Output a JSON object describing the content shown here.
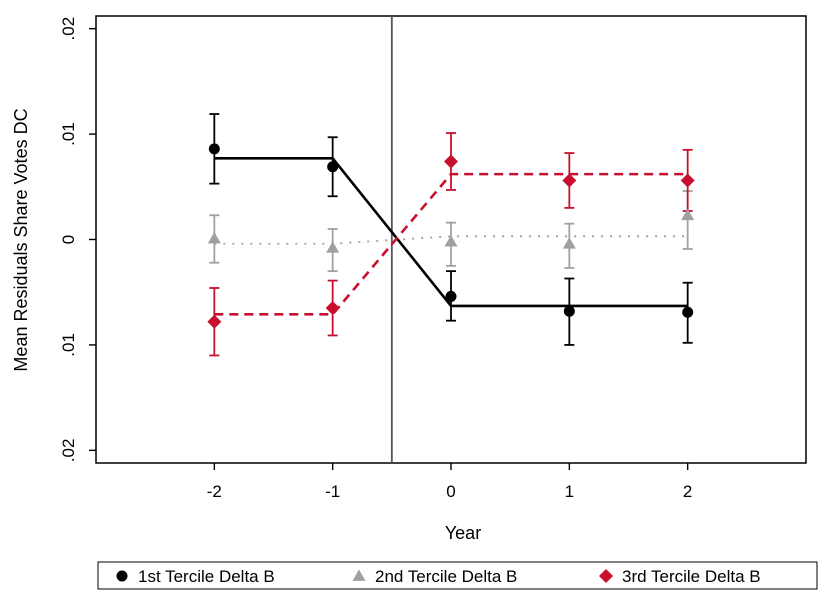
{
  "chart_data": {
    "type": "line",
    "title": "",
    "xlabel": "Year",
    "ylabel": "Mean Residuals Share Votes DC",
    "x_ticks": [
      -2,
      -1,
      0,
      1,
      2
    ],
    "x_tick_labels": [
      "-2",
      "-1",
      "0",
      "1",
      "2"
    ],
    "y_ticks": [
      -0.02,
      -0.01,
      0,
      0.01,
      0.02
    ],
    "y_tick_labels": [
      ".02",
      ".01",
      "0",
      ".01",
      ".02"
    ],
    "y_tick_labels_full": [
      "-.02",
      "-.01",
      "0",
      ".01",
      ".02"
    ],
    "xlim": [
      -3,
      3
    ],
    "ylim": [
      -0.0212,
      0.0212
    ],
    "vertical_reference_line": -0.5,
    "grid": false,
    "legend_position": "bottom",
    "series": [
      {
        "name": "1st Tercile Delta B",
        "color": "#000000",
        "marker": "circle",
        "fit_line_style": "solid",
        "x": [
          -2,
          -1,
          0,
          1,
          2
        ],
        "y": [
          0.0086,
          0.0069,
          -0.0054,
          -0.0068,
          -0.0069
        ],
        "ci_low": [
          0.0053,
          0.0041,
          -0.0077,
          -0.01,
          -0.0098
        ],
        "ci_high": [
          0.0119,
          0.0097,
          -0.003,
          -0.0037,
          -0.0041
        ],
        "fit_line": [
          [
            -2,
            0.0077
          ],
          [
            -1,
            0.0077
          ],
          [
            0,
            -0.0063
          ],
          [
            2,
            -0.0063
          ]
        ]
      },
      {
        "name": "2nd Tercile Delta B",
        "color": "#a0a0a0",
        "marker": "triangle",
        "fit_line_style": "dotted",
        "x": [
          -2,
          -1,
          0,
          1,
          2
        ],
        "y": [
          0.0001,
          -0.0008,
          -0.0002,
          -0.0004,
          0.0023
        ],
        "ci_low": [
          -0.0022,
          -0.003,
          -0.0025,
          -0.0027,
          -0.0009
        ],
        "ci_high": [
          0.0023,
          0.001,
          0.0016,
          0.0015,
          0.0046
        ],
        "fit_line": [
          [
            -2,
            -0.0004
          ],
          [
            -1,
            -0.0004
          ],
          [
            0,
            0.0003
          ],
          [
            2,
            0.0003
          ]
        ]
      },
      {
        "name": "3rd Tercile Delta B",
        "color": "#c8102e",
        "marker": "diamond",
        "fit_line_style": "dashed",
        "x": [
          -2,
          -1,
          0,
          1,
          2
        ],
        "y": [
          -0.0078,
          -0.0065,
          0.0074,
          0.0056,
          0.0056
        ],
        "ci_low": [
          -0.011,
          -0.0091,
          0.0047,
          0.003,
          0.0027
        ],
        "ci_high": [
          -0.0046,
          -0.0039,
          0.0101,
          0.0082,
          0.0085
        ],
        "fit_line": [
          [
            -2,
            -0.0071
          ],
          [
            -1,
            -0.0071
          ],
          [
            0,
            0.0062
          ],
          [
            2,
            0.0062
          ]
        ]
      }
    ]
  }
}
